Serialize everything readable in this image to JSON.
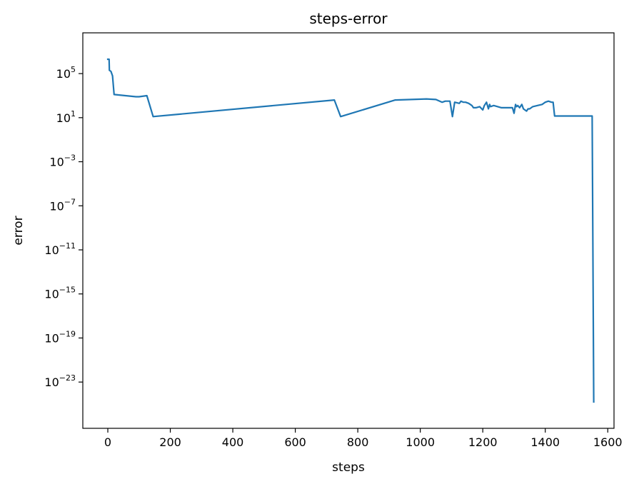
{
  "chart_data": {
    "type": "line",
    "title": "steps-error",
    "xlabel": "steps",
    "ylabel": "error",
    "yscale": "log",
    "xlim": [
      -80,
      1620
    ],
    "ylim_log10": [
      -27.2,
      8.7
    ],
    "grid": false,
    "line_color": "#1f77b4",
    "x_ticks": [
      0,
      200,
      400,
      600,
      800,
      1000,
      1200,
      1400,
      1600
    ],
    "x_tick_labels": [
      "0",
      "200",
      "400",
      "600",
      "800",
      "1000",
      "1200",
      "1400",
      "1600"
    ],
    "y_ticks": [
      {
        "base": "10",
        "exp": "5"
      },
      {
        "base": "10",
        "exp": "1"
      },
      {
        "base": "10",
        "exp": "−3"
      },
      {
        "base": "10",
        "exp": "−7"
      },
      {
        "base": "10",
        "exp": "−11"
      },
      {
        "base": "10",
        "exp": "−15"
      },
      {
        "base": "10",
        "exp": "−19"
      },
      {
        "base": "10",
        "exp": "−23"
      }
    ],
    "series": [
      {
        "x": [
          0,
          4,
          5,
          10,
          15,
          20,
          90,
          100,
          125,
          145,
          725,
          745,
          920,
          1020,
          1050,
          1070,
          1080,
          1095,
          1103,
          1110,
          1125,
          1130,
          1138,
          1145,
          1155,
          1165,
          1170,
          1178,
          1190,
          1200,
          1205,
          1212,
          1218,
          1222,
          1225,
          1235,
          1260,
          1295,
          1300,
          1305,
          1308,
          1312,
          1318,
          1325,
          1330,
          1340,
          1345,
          1350,
          1360,
          1375,
          1390,
          1400,
          1410,
          1420,
          1425,
          1430,
          1440,
          1550,
          1555
        ],
        "y_log10": [
          6.3,
          6.3,
          5.3,
          5.2,
          4.8,
          3.1,
          2.9,
          2.9,
          3.0,
          1.1,
          2.6,
          1.1,
          2.6,
          2.7,
          2.65,
          2.4,
          2.5,
          2.5,
          1.1,
          2.4,
          2.3,
          2.5,
          2.4,
          2.4,
          2.3,
          2.1,
          1.9,
          1.9,
          2.0,
          1.7,
          2.1,
          2.4,
          1.8,
          2.2,
          2.0,
          2.1,
          1.9,
          1.9,
          1.4,
          2.2,
          2.0,
          2.1,
          1.9,
          2.2,
          1.8,
          1.6,
          1.8,
          1.8,
          2.0,
          2.1,
          2.2,
          2.4,
          2.5,
          2.4,
          2.4,
          1.15,
          1.15,
          1.15,
          -24.8
        ]
      }
    ]
  }
}
